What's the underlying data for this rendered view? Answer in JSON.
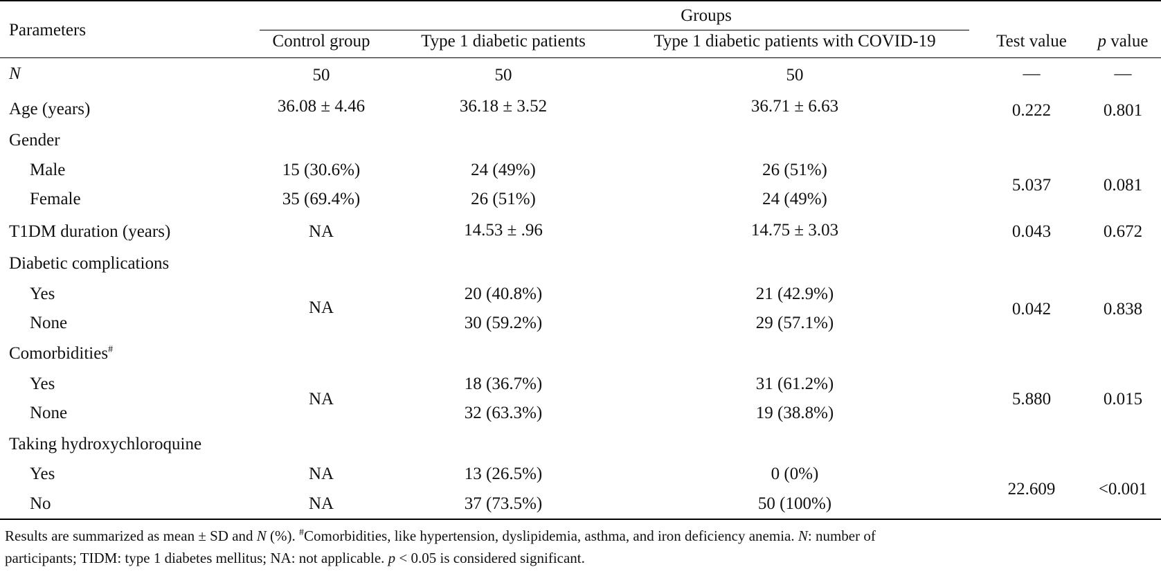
{
  "table": {
    "header": {
      "parameters": "Parameters",
      "groups": "Groups",
      "control": "Control group",
      "t1d": "Type 1 diabetic patients",
      "t1d_covid": "Type 1 diabetic patients with COVID-19",
      "test_value": "Test value",
      "p_italic": "p",
      "p_rest": " value"
    },
    "rows": {
      "n": {
        "label": "N",
        "control": "50",
        "t1d": "50",
        "t1d_covid": "50",
        "test": "—",
        "p": "—"
      },
      "age": {
        "label": "Age (years)",
        "control": "36.08 ± 4.46",
        "t1d": "36.18 ± 3.52",
        "t1d_covid": "36.71 ± 6.63",
        "test": "0.222",
        "p": "0.801"
      },
      "gender": {
        "label": "Gender",
        "test": "5.037",
        "p": "0.081",
        "male": {
          "label": "Male",
          "control": "15 (30.6%)",
          "t1d": "24 (49%)",
          "t1d_covid": "26 (51%)"
        },
        "female": {
          "label": "Female",
          "control": "35 (69.4%)",
          "t1d": "26 (51%)",
          "t1d_covid": "24 (49%)"
        }
      },
      "duration": {
        "label": "T1DM duration (years)",
        "control": "NA",
        "t1d": "14.53 ± .96",
        "t1d_covid": "14.75 ± 3.03",
        "test": "0.043",
        "p": "0.672"
      },
      "complications": {
        "label": "Diabetic complications",
        "control": "NA",
        "test": "0.042",
        "p": "0.838",
        "yes": {
          "label": "Yes",
          "t1d": "20 (40.8%)",
          "t1d_covid": "21 (42.9%)"
        },
        "none": {
          "label": "None",
          "t1d": "30 (59.2%)",
          "t1d_covid": "29 (57.1%)"
        }
      },
      "comorbidities": {
        "label": "Comorbidities",
        "sup": "#",
        "control": "NA",
        "test": "5.880",
        "p": "0.015",
        "yes": {
          "label": "Yes",
          "t1d": "18 (36.7%)",
          "t1d_covid": "31 (61.2%)"
        },
        "none": {
          "label": "None",
          "t1d": "32 (63.3%)",
          "t1d_covid": "19 (38.8%)"
        }
      },
      "hcq": {
        "label": "Taking hydroxychloroquine",
        "test": "22.609",
        "p": "<0.001",
        "yes": {
          "label": "Yes",
          "control": "NA",
          "t1d": "13 (26.5%)",
          "t1d_covid": "0 (0%)"
        },
        "no": {
          "label": "No",
          "control": "NA",
          "t1d": "37 (73.5%)",
          "t1d_covid": "50 (100%)"
        }
      }
    },
    "footnote": {
      "p1": "Results are summarized as mean ± SD and ",
      "n_italic": "N",
      "p2": " (%). ",
      "sup": "#",
      "p3": "Comorbidities, like hypertension, dyslipidemia, asthma, and iron deficiency anemia. ",
      "n2_italic": "N",
      "p4": ": number of",
      "p5": "participants; TIDM: type 1 diabetes mellitus; NA: not applicable. ",
      "p_italic": "p",
      "p6": " < 0.05 is considered significant."
    }
  }
}
